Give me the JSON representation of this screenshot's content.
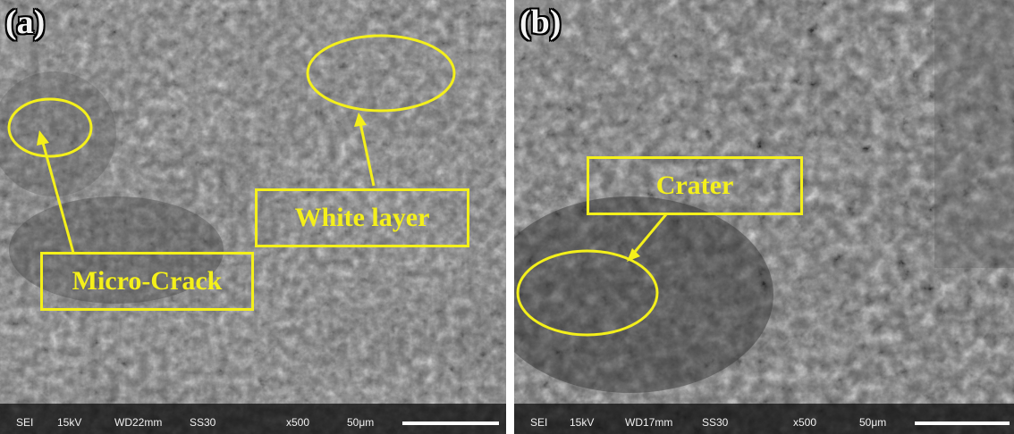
{
  "panels": [
    {
      "label": "(a)",
      "callouts": {
        "white_layer": "White layer",
        "micro_crack": "Micro-Crack"
      },
      "footer": {
        "mode": "SEI",
        "voltage": "15kV",
        "wd": "WD22mm",
        "ss": "SS30",
        "mag": "x500",
        "scale": "50μm"
      }
    },
    {
      "label": "(b)",
      "callouts": {
        "crater": "Crater"
      },
      "footer": {
        "mode": "SEI",
        "voltage": "15kV",
        "wd": "WD17mm",
        "ss": "SS30",
        "mag": "x500",
        "scale": "50μm"
      }
    }
  ],
  "colors": {
    "annotation": "#f4f01a",
    "background": "#6f6f6f"
  }
}
